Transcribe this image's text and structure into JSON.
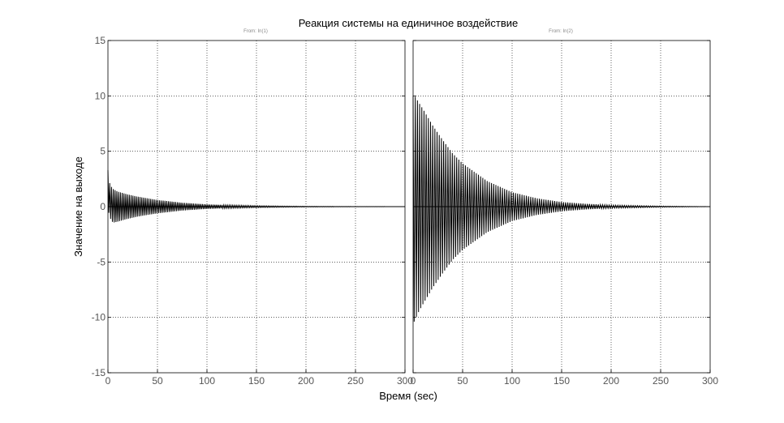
{
  "chart_data": {
    "type": "line",
    "title": "Реакция системы на единичное воздействие",
    "xlabel": "Время (sec)",
    "ylabel": "Значение на выходе",
    "ylim": [
      -15,
      15
    ],
    "yticks": [
      15,
      10,
      5,
      0,
      -5,
      -10,
      -15
    ],
    "grid": true,
    "panels": [
      {
        "subtitle": "From: In(1)",
        "xlim": [
          0,
          300
        ],
        "xticks": [
          0,
          50,
          100,
          150,
          200,
          250,
          300
        ],
        "series": [
          {
            "color": "#000000",
            "oscillation_period": 1.8,
            "envelope": [
              [
                0,
                3.3
              ],
              [
                2,
                2.0
              ],
              [
                5,
                1.6
              ],
              [
                10,
                1.35
              ],
              [
                20,
                1.1
              ],
              [
                30,
                0.9
              ],
              [
                50,
                0.6
              ],
              [
                75,
                0.35
              ],
              [
                100,
                0.2
              ],
              [
                125,
                0.13
              ],
              [
                150,
                0.08
              ],
              [
                175,
                0.05
              ],
              [
                200,
                0.03
              ],
              [
                250,
                0.01
              ],
              [
                300,
                0.0
              ]
            ],
            "lower_envelope": [
              [
                0,
                -0.2
              ],
              [
                2,
                -1.0
              ],
              [
                5,
                -1.45
              ],
              [
                10,
                -1.35
              ],
              [
                20,
                -1.1
              ],
              [
                30,
                -0.9
              ],
              [
                50,
                -0.6
              ],
              [
                75,
                -0.35
              ],
              [
                100,
                -0.2
              ],
              [
                125,
                -0.13
              ],
              [
                150,
                -0.08
              ],
              [
                175,
                -0.05
              ],
              [
                200,
                -0.03
              ],
              [
                250,
                -0.01
              ],
              [
                300,
                0.0
              ]
            ]
          }
        ]
      },
      {
        "subtitle": "From: In(2)",
        "xlim": [
          0,
          300
        ],
        "xticks": [
          0,
          50,
          100,
          150,
          200,
          250,
          300
        ],
        "series": [
          {
            "color": "#000000",
            "oscillation_period": 2.2,
            "envelope": [
              [
                0,
                10.0
              ],
              [
                1,
                10.1
              ],
              [
                5,
                9.5
              ],
              [
                10,
                8.8
              ],
              [
                20,
                7.3
              ],
              [
                30,
                6.0
              ],
              [
                40,
                4.8
              ],
              [
                50,
                3.9
              ],
              [
                75,
                2.3
              ],
              [
                100,
                1.3
              ],
              [
                125,
                0.75
              ],
              [
                150,
                0.42
              ],
              [
                175,
                0.25
              ],
              [
                200,
                0.14
              ],
              [
                250,
                0.05
              ],
              [
                300,
                0.0
              ]
            ],
            "lower_envelope": [
              [
                0,
                -10.6
              ],
              [
                1,
                -10.4
              ],
              [
                5,
                -9.6
              ],
              [
                10,
                -8.8
              ],
              [
                20,
                -7.3
              ],
              [
                30,
                -6.0
              ],
              [
                40,
                -4.8
              ],
              [
                50,
                -3.9
              ],
              [
                75,
                -2.3
              ],
              [
                100,
                -1.3
              ],
              [
                125,
                -0.75
              ],
              [
                150,
                -0.42
              ],
              [
                175,
                -0.25
              ],
              [
                200,
                -0.14
              ],
              [
                250,
                -0.05
              ],
              [
                300,
                0.0
              ]
            ]
          }
        ]
      }
    ]
  }
}
